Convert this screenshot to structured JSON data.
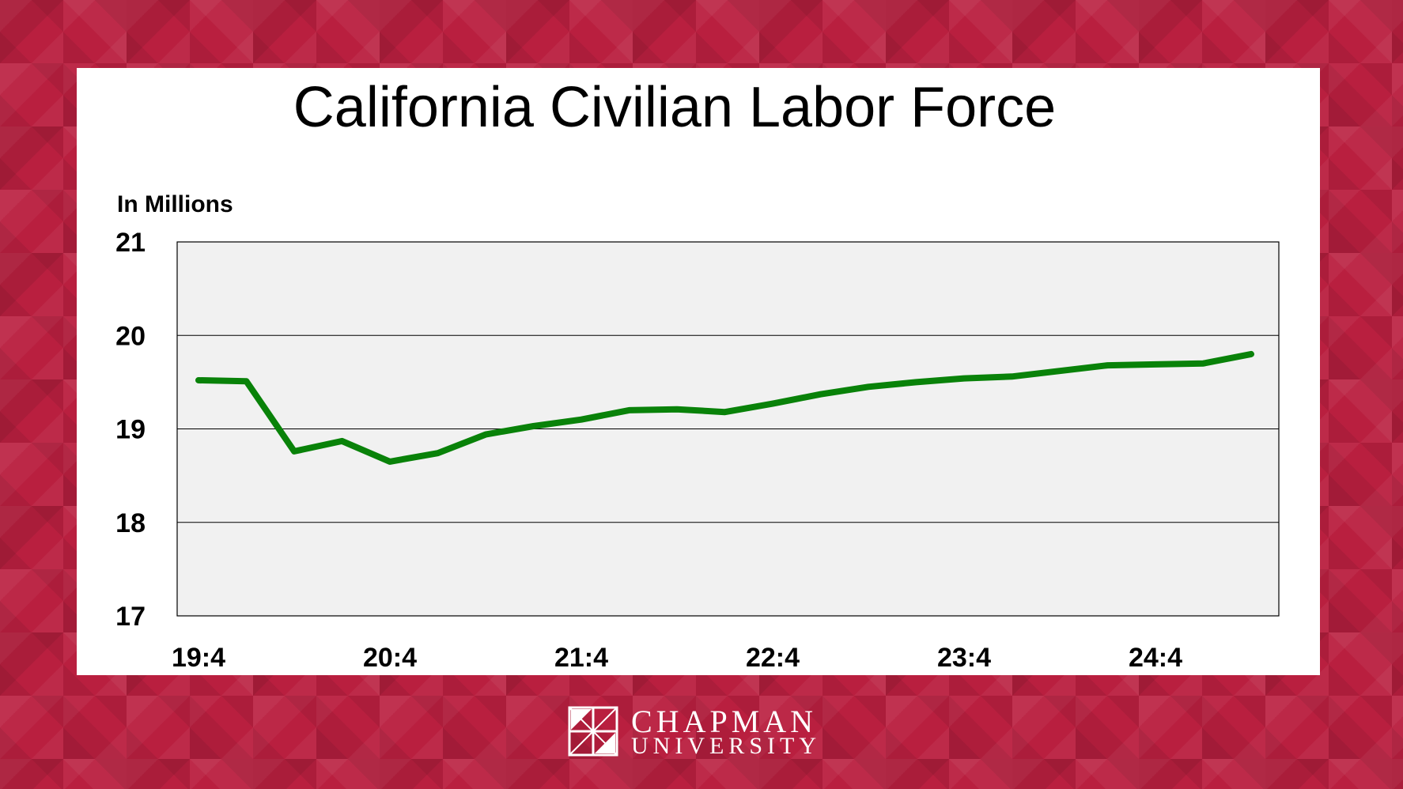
{
  "chart_data": {
    "type": "line",
    "title": "California Civilian Labor Force",
    "ylabel": "In Millions",
    "xlabel": "",
    "ylim": [
      17,
      21
    ],
    "yticks": [
      "17",
      "18",
      "19",
      "20",
      "21"
    ],
    "x": [
      "19:4",
      "20:1",
      "20:2",
      "20:3",
      "20:4",
      "21:1",
      "21:2",
      "21:3",
      "21:4",
      "22:1",
      "22:2",
      "22:3",
      "22:4",
      "23:1",
      "23:2",
      "23:3",
      "23:4",
      "24:1",
      "24:2",
      "24:3",
      "24:4",
      "25:1",
      "25:2"
    ],
    "xtick_labels": [
      "19:4",
      "20:4",
      "21:4",
      "22:4",
      "23:4",
      "24:4"
    ],
    "series": [
      {
        "values": [
          19.52,
          19.51,
          18.76,
          18.87,
          18.65,
          18.74,
          18.94,
          19.03,
          19.1,
          19.2,
          19.21,
          19.18,
          19.27,
          19.37,
          19.45,
          19.5,
          19.54,
          19.56,
          19.62,
          19.68,
          19.69,
          19.7,
          19.8
        ],
        "color": "#098209"
      }
    ],
    "grid": true,
    "plot_background": "#f1f1f1"
  },
  "branding": {
    "line1": "CHAPMAN",
    "line2": "UNIVERSITY",
    "background_color": "#b91f3f"
  }
}
